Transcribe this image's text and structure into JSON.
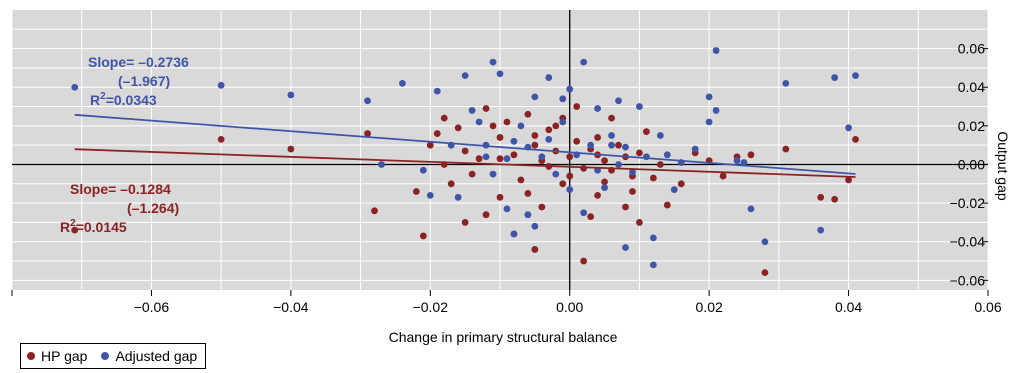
{
  "chart_data": {
    "type": "scatter",
    "xlabel": "Change in primary structural balance",
    "ylabel": "Output gap",
    "xlim": [
      -0.08,
      0.06
    ],
    "ylim": [
      -0.065,
      0.08
    ],
    "x_ticks": [
      -0.06,
      -0.04,
      -0.02,
      0.0,
      0.02,
      0.04,
      0.06
    ],
    "x_tick_labels": [
      "−0.06",
      "−0.04",
      "−0.02",
      "0.00",
      "0.02",
      "0.04",
      "0.06"
    ],
    "y_ticks": [
      0.06,
      0.04,
      0.02,
      0.0,
      -0.02,
      -0.04,
      -0.06
    ],
    "y_tick_labels": [
      "0.06",
      "0.04",
      "0.02",
      "0.00",
      "−0.02",
      "−0.04",
      "−0.06"
    ],
    "grid": true,
    "legend_position": "bottom-left",
    "colors": {
      "hp": "#8b2323",
      "adjusted": "#3f56a8",
      "plot_bg": "#d9d9d9",
      "grid": "#ffffff"
    },
    "series": [
      {
        "name": "HP gap",
        "color": "#8b2323",
        "points": [
          [
            -0.071,
            -0.034
          ],
          [
            -0.05,
            0.013
          ],
          [
            -0.04,
            0.008
          ],
          [
            -0.028,
            -0.024
          ],
          [
            -0.029,
            0.016
          ],
          [
            -0.021,
            -0.037
          ],
          [
            -0.022,
            -0.014
          ],
          [
            -0.02,
            0.01
          ],
          [
            -0.019,
            0.016
          ],
          [
            -0.018,
            0.0
          ],
          [
            -0.018,
            0.024
          ],
          [
            -0.017,
            -0.01
          ],
          [
            -0.016,
            0.019
          ],
          [
            -0.015,
            0.007
          ],
          [
            -0.014,
            -0.005
          ],
          [
            -0.013,
            0.003
          ],
          [
            -0.012,
            -0.026
          ],
          [
            -0.012,
            0.029
          ],
          [
            -0.011,
            0.02
          ],
          [
            -0.01,
            0.014
          ],
          [
            -0.01,
            -0.017
          ],
          [
            -0.009,
            0.022
          ],
          [
            -0.008,
            0.005
          ],
          [
            -0.007,
            -0.008
          ],
          [
            -0.006,
            0.026
          ],
          [
            -0.006,
            -0.015
          ],
          [
            -0.005,
            -0.044
          ],
          [
            -0.005,
            0.01
          ],
          [
            -0.004,
            0.002
          ],
          [
            -0.004,
            -0.022
          ],
          [
            -0.003,
            0.018
          ],
          [
            -0.003,
            -0.001
          ],
          [
            -0.002,
            0.007
          ],
          [
            -0.002,
            0.02
          ],
          [
            -0.001,
            -0.01
          ],
          [
            0.0,
            0.004
          ],
          [
            0.0,
            -0.006
          ],
          [
            0.001,
            0.012
          ],
          [
            0.001,
            0.03
          ],
          [
            0.002,
            -0.002
          ],
          [
            0.002,
            -0.05
          ],
          [
            0.003,
            0.008
          ],
          [
            0.004,
            -0.016
          ],
          [
            0.004,
            0.014
          ],
          [
            0.005,
            0.002
          ],
          [
            0.005,
            -0.009
          ],
          [
            0.006,
            0.024
          ],
          [
            0.006,
            -0.003
          ],
          [
            0.007,
            0.01
          ],
          [
            0.008,
            -0.022
          ],
          [
            0.008,
            0.004
          ],
          [
            0.009,
            -0.014
          ],
          [
            0.01,
            0.006
          ],
          [
            0.01,
            -0.03
          ],
          [
            0.011,
            0.017
          ],
          [
            0.012,
            -0.007
          ],
          [
            0.013,
            0.0
          ],
          [
            0.014,
            -0.021
          ],
          [
            0.016,
            -0.01
          ],
          [
            0.018,
            0.006
          ],
          [
            0.02,
            0.002
          ],
          [
            0.022,
            -0.006
          ],
          [
            0.024,
            0.004
          ],
          [
            0.026,
            0.005
          ],
          [
            0.028,
            -0.056
          ],
          [
            0.031,
            0.008
          ],
          [
            0.036,
            -0.017
          ],
          [
            0.038,
            -0.018
          ],
          [
            0.04,
            -0.008
          ],
          [
            0.041,
            0.013
          ],
          [
            -0.01,
            0.003
          ],
          [
            -0.008,
            -0.036
          ],
          [
            -0.001,
            0.024
          ],
          [
            0.003,
            -0.027
          ],
          [
            0.009,
            -0.006
          ],
          [
            -0.015,
            -0.03
          ],
          [
            -0.005,
            0.015
          ],
          [
            0.004,
            0.005
          ]
        ],
        "fit": {
          "slope": -0.1284,
          "intercept": -0.0012
        },
        "annotation": {
          "slope": "Slope= –0.1284",
          "tstat": "(–1.264)",
          "r2": "R",
          "r2_sup": "2",
          "r2_val": "=0.0145"
        }
      },
      {
        "name": "Adjusted gap",
        "color": "#3f56a8",
        "points": [
          [
            -0.071,
            0.04
          ],
          [
            -0.05,
            0.041
          ],
          [
            -0.04,
            0.036
          ],
          [
            -0.029,
            0.033
          ],
          [
            -0.027,
            0.0
          ],
          [
            -0.024,
            0.042
          ],
          [
            -0.021,
            -0.003
          ],
          [
            -0.02,
            -0.016
          ],
          [
            -0.019,
            0.038
          ],
          [
            -0.016,
            -0.017
          ],
          [
            -0.015,
            0.046
          ],
          [
            -0.014,
            0.028
          ],
          [
            -0.013,
            0.022
          ],
          [
            -0.012,
            0.01
          ],
          [
            -0.011,
            0.053
          ],
          [
            -0.011,
            -0.005
          ],
          [
            -0.01,
            0.047
          ],
          [
            -0.009,
            0.003
          ],
          [
            -0.009,
            -0.023
          ],
          [
            -0.008,
            0.012
          ],
          [
            -0.007,
            0.02
          ],
          [
            -0.006,
            -0.026
          ],
          [
            -0.006,
            0.009
          ],
          [
            -0.005,
            -0.032
          ],
          [
            -0.004,
            0.004
          ],
          [
            -0.003,
            0.045
          ],
          [
            -0.003,
            0.013
          ],
          [
            -0.002,
            -0.005
          ],
          [
            -0.001,
            0.034
          ],
          [
            -0.001,
            0.022
          ],
          [
            0.0,
            0.039
          ],
          [
            0.0,
            -0.013
          ],
          [
            0.001,
            0.005
          ],
          [
            0.002,
            0.053
          ],
          [
            0.002,
            -0.025
          ],
          [
            0.003,
            0.01
          ],
          [
            0.004,
            -0.003
          ],
          [
            0.004,
            0.029
          ],
          [
            0.005,
            -0.012
          ],
          [
            0.006,
            0.015
          ],
          [
            0.007,
            0.0
          ],
          [
            0.007,
            0.033
          ],
          [
            0.008,
            -0.043
          ],
          [
            0.008,
            0.009
          ],
          [
            0.009,
            -0.004
          ],
          [
            0.01,
            0.03
          ],
          [
            0.011,
            0.004
          ],
          [
            0.012,
            -0.038
          ],
          [
            0.013,
            0.015
          ],
          [
            0.014,
            0.005
          ],
          [
            0.015,
            -0.013
          ],
          [
            0.016,
            0.001
          ],
          [
            0.018,
            0.008
          ],
          [
            0.02,
            0.035
          ],
          [
            0.02,
            0.022
          ],
          [
            0.021,
            0.059
          ],
          [
            0.021,
            0.028
          ],
          [
            0.024,
            0.002
          ],
          [
            0.025,
            0.001
          ],
          [
            0.026,
            -0.023
          ],
          [
            0.028,
            -0.04
          ],
          [
            0.031,
            0.042
          ],
          [
            0.036,
            -0.034
          ],
          [
            0.038,
            0.045
          ],
          [
            0.04,
            0.019
          ],
          [
            0.041,
            0.046
          ],
          [
            -0.017,
            0.01
          ],
          [
            -0.005,
            0.035
          ],
          [
            0.012,
            -0.052
          ],
          [
            -0.008,
            -0.036
          ],
          [
            0.006,
            0.01
          ],
          [
            -0.012,
            0.004
          ]
        ],
        "fit": {
          "slope": -0.2736,
          "intercept": 0.0063
        },
        "annotation": {
          "slope": "Slope= –0.2736",
          "tstat": "(–1.967)",
          "r2": "R",
          "r2_sup": "2",
          "r2_val": "=0.0343"
        }
      }
    ]
  }
}
